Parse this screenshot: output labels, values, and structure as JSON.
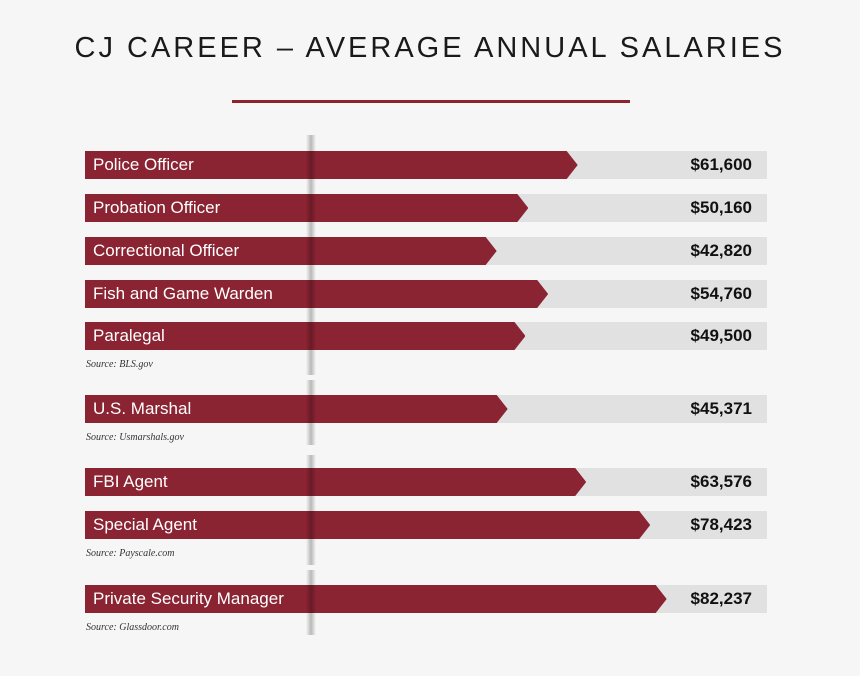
{
  "title": "CJ CAREER – AVERAGE ANNUAL SALARIES",
  "colors": {
    "bar": "#8a2332",
    "track": "#e1e1e1",
    "rule": "#8a2332"
  },
  "chart_data": {
    "type": "bar",
    "orientation": "horizontal",
    "title": "CJ CAREER – AVERAGE ANNUAL SALARIES",
    "categories": [
      "Police Officer",
      "Probation Officer",
      "Correctional Officer",
      "Fish and Game Warden",
      "Paralegal",
      "U.S. Marshal",
      "FBI Agent",
      "Special Agent",
      "Private Security Manager"
    ],
    "values": [
      61600,
      50160,
      42820,
      54760,
      49500,
      45371,
      63576,
      78423,
      82237
    ],
    "value_labels": [
      "$61,600",
      "$50,160",
      "$42,820",
      "$54,760",
      "$49,500",
      "$45,371",
      "$63,576",
      "$78,423",
      "$82,237"
    ],
    "unit": "USD"
  },
  "sources": [
    "Source: BLS.gov",
    "Source: Usmarshals.gov",
    "Source: Payscale.com",
    "Source: Glassdoor.com"
  ]
}
